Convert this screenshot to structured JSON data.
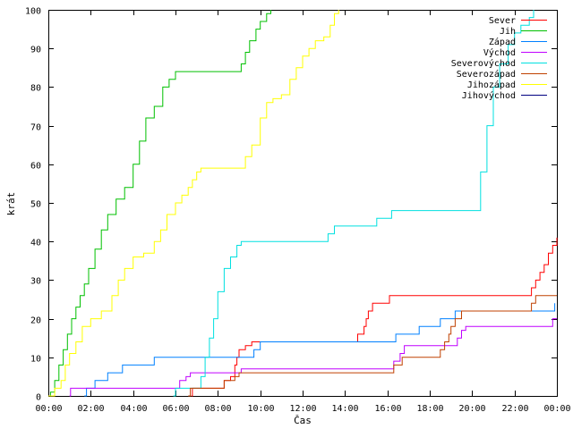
{
  "chart_data": {
    "type": "line",
    "xlabel": "Čas",
    "ylabel": "krát",
    "xlim": [
      "00:00",
      "24:00"
    ],
    "ylim": [
      0,
      100
    ],
    "x_ticks": [
      "00:00",
      "02:00",
      "04:00",
      "06:00",
      "08:00",
      "10:00",
      "12:00",
      "14:00",
      "16:00",
      "18:00",
      "20:00",
      "22:00",
      "00:00"
    ],
    "y_ticks": [
      0,
      10,
      20,
      30,
      40,
      50,
      60,
      70,
      80,
      90,
      100
    ],
    "grid": false,
    "legend_position": "top-right",
    "x_unit": "hours",
    "series": [
      {
        "name": "Sever",
        "color": "#ff0000",
        "points": [
          [
            6.75,
            0
          ],
          [
            6.8,
            2
          ],
          [
            8.0,
            2
          ],
          [
            8.3,
            4
          ],
          [
            8.6,
            5
          ],
          [
            8.8,
            8
          ],
          [
            8.9,
            10
          ],
          [
            9.0,
            12
          ],
          [
            9.3,
            13
          ],
          [
            9.6,
            14
          ],
          [
            10.4,
            14
          ],
          [
            14.5,
            14
          ],
          [
            14.6,
            16
          ],
          [
            14.9,
            18
          ],
          [
            15.0,
            20
          ],
          [
            15.1,
            22
          ],
          [
            15.3,
            24
          ],
          [
            16.0,
            24
          ],
          [
            16.1,
            26
          ],
          [
            22.6,
            26
          ],
          [
            22.8,
            28
          ],
          [
            23.0,
            30
          ],
          [
            23.2,
            32
          ],
          [
            23.4,
            34
          ],
          [
            23.6,
            37
          ],
          [
            23.8,
            39
          ],
          [
            24.0,
            41
          ]
        ]
      },
      {
        "name": "Jih",
        "color": "#00c000",
        "points": [
          [
            0.0,
            0
          ],
          [
            0.1,
            1
          ],
          [
            0.3,
            4
          ],
          [
            0.5,
            8
          ],
          [
            0.7,
            12
          ],
          [
            0.9,
            16
          ],
          [
            1.1,
            20
          ],
          [
            1.3,
            23
          ],
          [
            1.5,
            26
          ],
          [
            1.7,
            29
          ],
          [
            1.9,
            33
          ],
          [
            2.2,
            38
          ],
          [
            2.5,
            43
          ],
          [
            2.8,
            47
          ],
          [
            3.2,
            51
          ],
          [
            3.6,
            54
          ],
          [
            4.0,
            60
          ],
          [
            4.3,
            66
          ],
          [
            4.6,
            72
          ],
          [
            5.0,
            75
          ],
          [
            5.4,
            80
          ],
          [
            5.7,
            82
          ],
          [
            6.0,
            84
          ],
          [
            7.0,
            84
          ],
          [
            8.0,
            84
          ],
          [
            9.0,
            84
          ],
          [
            9.1,
            86
          ],
          [
            9.3,
            89
          ],
          [
            9.5,
            92
          ],
          [
            9.8,
            95
          ],
          [
            10.0,
            97
          ],
          [
            10.3,
            99
          ],
          [
            10.5,
            100
          ]
        ]
      },
      {
        "name": "Západ",
        "color": "#0080ff",
        "points": [
          [
            1.7,
            0
          ],
          [
            1.8,
            2
          ],
          [
            2.0,
            2
          ],
          [
            2.2,
            4
          ],
          [
            2.8,
            6
          ],
          [
            3.5,
            8
          ],
          [
            4.5,
            8
          ],
          [
            5.0,
            10
          ],
          [
            8.0,
            10
          ],
          [
            9.5,
            10
          ],
          [
            9.7,
            12
          ],
          [
            10.0,
            14
          ],
          [
            12.0,
            14
          ],
          [
            14.0,
            14
          ],
          [
            16.0,
            14
          ],
          [
            16.4,
            16
          ],
          [
            17.0,
            16
          ],
          [
            17.5,
            18
          ],
          [
            18.0,
            18
          ],
          [
            18.5,
            20
          ],
          [
            19.0,
            20
          ],
          [
            19.2,
            22
          ],
          [
            21.0,
            22
          ],
          [
            23.8,
            22
          ],
          [
            23.9,
            24
          ]
        ]
      },
      {
        "name": "Východ",
        "color": "#c000ff",
        "points": [
          [
            1.0,
            0
          ],
          [
            1.05,
            2
          ],
          [
            6.0,
            2
          ],
          [
            6.2,
            4
          ],
          [
            6.5,
            5
          ],
          [
            6.7,
            6
          ],
          [
            8.7,
            6
          ],
          [
            9.0,
            6
          ],
          [
            9.1,
            7
          ],
          [
            15.0,
            7
          ],
          [
            16.0,
            7
          ],
          [
            16.3,
            9
          ],
          [
            16.6,
            11
          ],
          [
            16.8,
            13
          ],
          [
            19.0,
            13
          ],
          [
            19.3,
            15
          ],
          [
            19.5,
            17
          ],
          [
            19.7,
            18
          ],
          [
            23.5,
            18
          ],
          [
            23.8,
            20
          ],
          [
            24.0,
            20
          ]
        ]
      },
      {
        "name": "Severovýchod",
        "color": "#00e0e0",
        "points": [
          [
            5.9,
            0
          ],
          [
            6.0,
            2
          ],
          [
            7.0,
            2
          ],
          [
            7.2,
            5
          ],
          [
            7.4,
            10
          ],
          [
            7.6,
            15
          ],
          [
            7.8,
            20
          ],
          [
            8.0,
            27
          ],
          [
            8.3,
            33
          ],
          [
            8.6,
            36
          ],
          [
            8.9,
            39
          ],
          [
            9.1,
            40
          ],
          [
            12.0,
            40
          ],
          [
            13.0,
            40
          ],
          [
            13.2,
            42
          ],
          [
            13.5,
            44
          ],
          [
            15.0,
            44
          ],
          [
            15.5,
            46
          ],
          [
            16.0,
            46
          ],
          [
            16.2,
            48
          ],
          [
            20.0,
            48
          ],
          [
            20.4,
            58
          ],
          [
            20.7,
            70
          ],
          [
            21.0,
            80
          ],
          [
            21.3,
            86
          ],
          [
            21.7,
            91
          ],
          [
            22.0,
            94
          ],
          [
            22.3,
            96
          ],
          [
            22.7,
            98
          ],
          [
            22.9,
            100
          ]
        ]
      },
      {
        "name": "Severozápad",
        "color": "#c04000",
        "points": [
          [
            6.6,
            0
          ],
          [
            6.7,
            2
          ],
          [
            8.0,
            2
          ],
          [
            8.3,
            4
          ],
          [
            8.8,
            5
          ],
          [
            9.0,
            6
          ],
          [
            16.0,
            6
          ],
          [
            16.3,
            8
          ],
          [
            16.7,
            10
          ],
          [
            18.3,
            10
          ],
          [
            18.5,
            12
          ],
          [
            18.7,
            14
          ],
          [
            18.9,
            16
          ],
          [
            19.0,
            18
          ],
          [
            19.2,
            20
          ],
          [
            19.5,
            22
          ],
          [
            22.5,
            22
          ],
          [
            22.8,
            24
          ],
          [
            23.0,
            26
          ],
          [
            24.0,
            26
          ]
        ]
      },
      {
        "name": "Jihozápad",
        "color": "#ffff00",
        "points": [
          [
            0.0,
            0
          ],
          [
            0.3,
            2
          ],
          [
            0.6,
            4
          ],
          [
            0.8,
            8
          ],
          [
            1.0,
            11
          ],
          [
            1.3,
            14
          ],
          [
            1.6,
            18
          ],
          [
            2.0,
            20
          ],
          [
            2.5,
            22
          ],
          [
            3.0,
            26
          ],
          [
            3.3,
            30
          ],
          [
            3.6,
            33
          ],
          [
            4.0,
            36
          ],
          [
            4.5,
            37
          ],
          [
            5.0,
            40
          ],
          [
            5.3,
            43
          ],
          [
            5.6,
            47
          ],
          [
            6.0,
            50
          ],
          [
            6.3,
            52
          ],
          [
            6.6,
            54
          ],
          [
            6.8,
            56
          ],
          [
            7.0,
            58
          ],
          [
            7.2,
            59
          ],
          [
            9.0,
            59
          ],
          [
            9.3,
            62
          ],
          [
            9.6,
            65
          ],
          [
            10.0,
            72
          ],
          [
            10.3,
            76
          ],
          [
            10.6,
            77
          ],
          [
            11.0,
            78
          ],
          [
            11.4,
            82
          ],
          [
            11.7,
            85
          ],
          [
            12.0,
            88
          ],
          [
            12.3,
            90
          ],
          [
            12.6,
            92
          ],
          [
            13.0,
            93
          ],
          [
            13.3,
            96
          ],
          [
            13.5,
            99
          ],
          [
            13.7,
            100
          ]
        ]
      },
      {
        "name": "Jihovýchod",
        "color": "#000080",
        "points": []
      }
    ]
  }
}
